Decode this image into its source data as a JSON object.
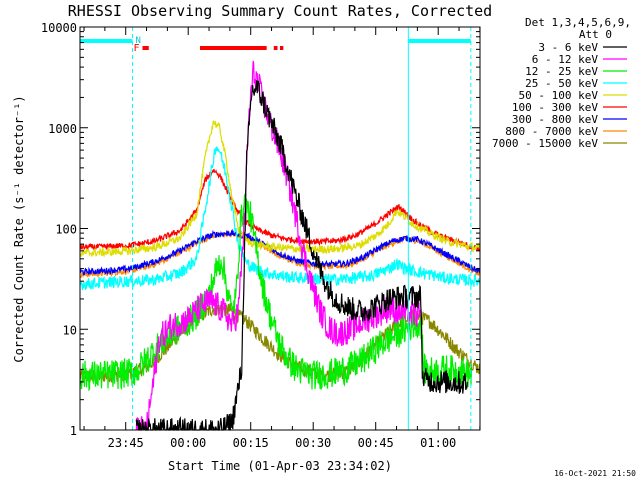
{
  "chart_data": {
    "type": "line",
    "title": "RHESSI Observing Summary Count Rates, Corrected",
    "xlabel": "Start Time (01-Apr-03 23:34:02)",
    "ylabel": "Corrected Count Rate (s⁻¹ detector⁻¹)",
    "yscale": "log",
    "ylim": [
      1,
      10000
    ],
    "xlim_minutes": [
      0,
      96
    ],
    "x_ticks": [
      {
        "m": 10.97,
        "label": "23:45"
      },
      {
        "m": 25.97,
        "label": "00:00"
      },
      {
        "m": 40.97,
        "label": "00:15"
      },
      {
        "m": 55.97,
        "label": "00:30"
      },
      {
        "m": 70.97,
        "label": "00:45"
      },
      {
        "m": 85.97,
        "label": "01:00"
      }
    ],
    "y_ticks": [
      {
        "v": 1,
        "label": "1"
      },
      {
        "v": 10,
        "label": "10"
      },
      {
        "v": 100,
        "label": "100"
      },
      {
        "v": 1000,
        "label": "1000"
      },
      {
        "v": 10000,
        "label": "10000"
      }
    ],
    "detector_info": {
      "line1": "Det 1,3,4,5,6,9,",
      "line2": "Att 0"
    },
    "legend": [
      {
        "label": "3 - 6 keV",
        "color": "#000000"
      },
      {
        "label": "6 - 12 keV",
        "color": "#ff00ff"
      },
      {
        "label": "12 - 25 keV",
        "color": "#00ee00"
      },
      {
        "label": "25 - 50 keV",
        "color": "#00ffff"
      },
      {
        "label": "50 - 100 keV",
        "color": "#dddd00"
      },
      {
        "label": "100 - 300 keV",
        "color": "#ff0000"
      },
      {
        "label": "300 - 800 keV",
        "color": "#0000ff"
      },
      {
        "label": "800 - 7000 keV",
        "color": "#ff8800"
      },
      {
        "label": "7000 - 15000 keV",
        "color": "#888800"
      }
    ],
    "series": [
      {
        "name": "3 - 6 keV",
        "color": "#000000",
        "noise": 0.12,
        "x": [
          13.5,
          16,
          19,
          22,
          25,
          28,
          31,
          34,
          36.5,
          38.8,
          40,
          41.2,
          42.5,
          44,
          46,
          48,
          50,
          52,
          54,
          56,
          58,
          60,
          62,
          65,
          68,
          71,
          74,
          77,
          80,
          81.8,
          82.2,
          84,
          86,
          89,
          92,
          93
        ],
        "y": [
          1,
          1,
          1,
          1,
          1,
          1,
          1,
          1,
          1.2,
          4,
          450,
          2300,
          2500,
          1800,
          1100,
          700,
          380,
          200,
          110,
          60,
          35,
          24,
          19,
          16,
          15,
          17,
          20,
          21,
          21,
          21,
          3.2,
          3.1,
          3.0,
          3.0,
          2.9,
          3.0
        ]
      },
      {
        "name": "6 - 12 keV",
        "color": "#ff00ff",
        "noise": 0.14,
        "x": [
          13.5,
          16,
          19,
          22,
          25,
          27,
          29,
          31,
          33,
          35,
          36.5,
          38,
          39.5,
          40.5,
          41.5,
          42.5,
          44,
          46,
          48,
          50,
          52,
          54,
          56,
          58,
          60,
          62,
          65,
          68,
          71,
          74,
          77,
          80,
          81.8
        ],
        "y": [
          1,
          1,
          8,
          11,
          12,
          14,
          17,
          19,
          17,
          14,
          11,
          15,
          120,
          1200,
          3500,
          3000,
          1800,
          1000,
          600,
          300,
          120,
          50,
          25,
          14,
          10,
          9,
          10,
          12,
          14,
          16,
          15,
          14,
          14
        ]
      },
      {
        "name": "12 - 25 keV",
        "color": "#00ee00",
        "noise": 0.15,
        "x": [
          0,
          5,
          10,
          13.5,
          16,
          19,
          22,
          25,
          28,
          31,
          32.8,
          34,
          35,
          36.5,
          37.5,
          38.5,
          39.5,
          41,
          42.5,
          44,
          46,
          48,
          50,
          52,
          56,
          60,
          64,
          68,
          72,
          76,
          80,
          81.8,
          82.5,
          84,
          88,
          92,
          94
        ],
        "y": [
          3.5,
          3.5,
          3.6,
          3.8,
          5,
          7,
          9,
          11,
          14,
          22,
          40,
          50,
          30,
          14,
          22,
          110,
          180,
          130,
          55,
          25,
          12,
          7,
          5,
          4,
          3.5,
          3.6,
          4,
          5,
          7,
          9,
          11,
          12,
          4,
          3.8,
          4,
          3.8,
          3.5
        ]
      },
      {
        "name": "25 - 50 keV",
        "color": "#00ffff",
        "noise": 0.06,
        "x": [
          0,
          6,
          12,
          18,
          24,
          28,
          30.5,
          32.5,
          33.5,
          35,
          36.5,
          38,
          39,
          40,
          42,
          45,
          50,
          55,
          60,
          65,
          70,
          74,
          76,
          78,
          80,
          84,
          88,
          92,
          96
        ],
        "y": [
          28,
          29,
          30,
          31,
          36,
          50,
          200,
          650,
          600,
          350,
          160,
          70,
          55,
          45,
          40,
          36,
          33,
          32,
          31,
          32,
          34,
          40,
          45,
          40,
          38,
          35,
          32,
          31,
          30
        ]
      },
      {
        "name": "50 - 100 keV",
        "color": "#dddd00",
        "noise": 0.04,
        "x": [
          0,
          6,
          12,
          18,
          24,
          28,
          30,
          32,
          33.5,
          35,
          36.5,
          38,
          40,
          43,
          47,
          52,
          57,
          62,
          67,
          71,
          74,
          76,
          78,
          80,
          84,
          88,
          92,
          96
        ],
        "y": [
          57,
          58,
          60,
          65,
          80,
          140,
          500,
          1150,
          1000,
          500,
          200,
          100,
          75,
          68,
          65,
          63,
          62,
          63,
          68,
          85,
          110,
          150,
          130,
          110,
          90,
          75,
          68,
          63
        ]
      },
      {
        "name": "100 - 300 keV",
        "color": "#ff0000",
        "noise": 0.03,
        "x": [
          0,
          6,
          12,
          18,
          24,
          28,
          30,
          32,
          33.5,
          35,
          37,
          39,
          42,
          46,
          50,
          54,
          58,
          62,
          66,
          70,
          73,
          75,
          76.5,
          78,
          80,
          83,
          86,
          90,
          93,
          96
        ],
        "y": [
          65,
          66,
          68,
          75,
          95,
          150,
          300,
          380,
          340,
          250,
          170,
          125,
          100,
          85,
          78,
          75,
          74,
          76,
          85,
          105,
          130,
          150,
          165,
          145,
          120,
          100,
          85,
          75,
          68,
          63
        ]
      },
      {
        "name": "300 - 800 keV",
        "color": "#0000ff",
        "noise": 0.03,
        "x": [
          0,
          6,
          12,
          18,
          24,
          28,
          32,
          36,
          40,
          44,
          48,
          52,
          56,
          60,
          64,
          68,
          72,
          75,
          78,
          81,
          84,
          88,
          92,
          96
        ],
        "y": [
          37,
          38,
          40,
          47,
          60,
          75,
          87,
          90,
          85,
          70,
          56,
          48,
          45,
          44,
          45,
          52,
          65,
          75,
          80,
          78,
          68,
          55,
          45,
          37
        ]
      },
      {
        "name": "800 - 7000 keV",
        "color": "#ff8800",
        "noise": 0.03,
        "x": [
          0,
          6,
          12,
          18,
          24,
          28,
          32,
          36,
          40,
          44,
          48,
          52,
          56,
          60,
          64,
          68,
          72,
          75,
          78,
          81,
          84,
          88,
          92,
          96
        ],
        "y": [
          35,
          36,
          38,
          44,
          58,
          72,
          85,
          88,
          82,
          67,
          53,
          46,
          43,
          42,
          43,
          50,
          62,
          72,
          78,
          76,
          66,
          53,
          43,
          35
        ]
      },
      {
        "name": "7000 - 15000 keV",
        "color": "#888800",
        "noise": 0.07,
        "x": [
          0,
          4,
          8,
          12,
          16,
          20,
          24,
          28,
          32,
          36,
          40,
          44,
          48,
          52,
          56,
          60,
          64,
          66,
          68,
          70,
          73,
          76,
          79,
          81,
          84,
          87,
          90,
          93,
          96
        ],
        "y": [
          3.4,
          3.4,
          3.5,
          3.6,
          4.2,
          6,
          9,
          13,
          16,
          15.5,
          12,
          8,
          5.5,
          4.2,
          3.7,
          3.5,
          3.8,
          4.3,
          5.2,
          6.5,
          8.5,
          11,
          13,
          13.5,
          12,
          9,
          6.5,
          5,
          4
        ]
      }
    ],
    "status_bars": {
      "saa_label": "N",
      "flare_label": "F",
      "night": [
        [
          0,
          12.6
        ],
        [
          78.8,
          93.8
        ]
      ],
      "flare": [
        [
          15,
          16.5
        ],
        [
          28.8,
          44.8
        ],
        [
          46.5,
          47.4
        ],
        [
          48,
          48.8
        ]
      ]
    },
    "vertical_markers": [
      0,
      12.6,
      78.8,
      93.8
    ]
  },
  "footer": {
    "date_stamp": "16-Oct-2021 21:50"
  }
}
